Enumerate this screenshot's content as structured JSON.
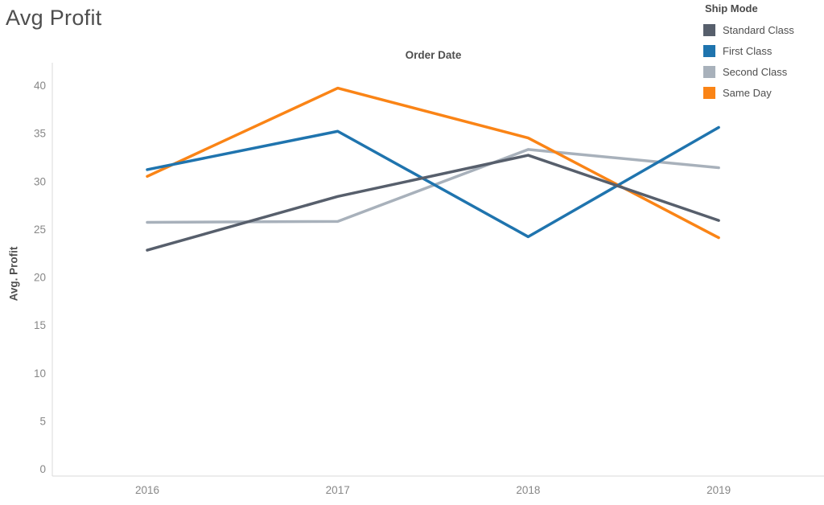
{
  "page": {
    "title": "Avg Profit"
  },
  "legend": {
    "title": "Ship Mode",
    "items": [
      {
        "label": "Standard Class",
        "color": "#575f6c"
      },
      {
        "label": "First Class",
        "color": "#1f74ae"
      },
      {
        "label": "Second Class",
        "color": "#a8b1bb"
      },
      {
        "label": "Same Day",
        "color": "#fa8416"
      }
    ]
  },
  "chart_data": {
    "type": "line",
    "title": "Avg Profit",
    "xlabel": "Order Date",
    "ylabel": "Avg. Profit",
    "x": [
      "2016",
      "2017",
      "2018",
      "2019"
    ],
    "yticks": [
      0,
      5,
      10,
      15,
      20,
      25,
      30,
      35,
      40
    ],
    "ylim": [
      0,
      40
    ],
    "grid": false,
    "legend_position": "top-right",
    "legend_title": "Ship Mode",
    "series": [
      {
        "name": "Standard Class",
        "color": "#575f6c",
        "values": [
          22.8,
          28.4,
          32.7,
          25.9
        ]
      },
      {
        "name": "First Class",
        "color": "#1f74ae",
        "values": [
          31.2,
          35.2,
          24.2,
          35.6
        ]
      },
      {
        "name": "Second Class",
        "color": "#a8b1bb",
        "values": [
          25.7,
          25.8,
          33.3,
          31.4
        ]
      },
      {
        "name": "Same Day",
        "color": "#fa8416",
        "values": [
          30.5,
          39.7,
          34.5,
          24.1
        ]
      }
    ],
    "draw_order": [
      2,
      3,
      1,
      0
    ],
    "axis_color": "#d9d9d9",
    "tick_label_color": "#878787"
  }
}
